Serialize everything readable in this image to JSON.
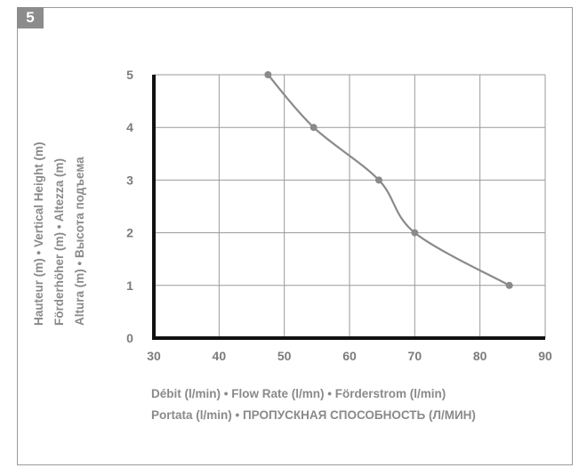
{
  "figure": {
    "number": "5"
  },
  "chart_data": {
    "type": "line",
    "x": [
      47.5,
      54.5,
      64.5,
      70,
      84.5
    ],
    "y": [
      5,
      4,
      3,
      2,
      1
    ],
    "xlim": [
      30,
      90
    ],
    "ylim": [
      0,
      5
    ],
    "xticks": [
      "30",
      "40",
      "50",
      "60",
      "70",
      "80",
      "90"
    ],
    "yticks": [
      "0",
      "1",
      "2",
      "3",
      "4",
      "5"
    ],
    "grid": true,
    "xlabel_lines": [
      "Débit (l/min) • Flow Rate (l/mn) • Förderstrom (l/min)",
      "Portata (l/min) • ПРОПУСКНАЯ СПОСОБНОСТЬ (Л/МИН)"
    ],
    "ylabel_lines": [
      "Hauteur (m) • Vertical Height (m)",
      "Förderhöher (m) • Altezza (m)",
      "Altura (m)  • Высота подъема"
    ],
    "colors": {
      "line": "#8a8a8a",
      "grid": "#9a9a9a",
      "axis": "#111111",
      "text": "#7c7c7c"
    }
  }
}
